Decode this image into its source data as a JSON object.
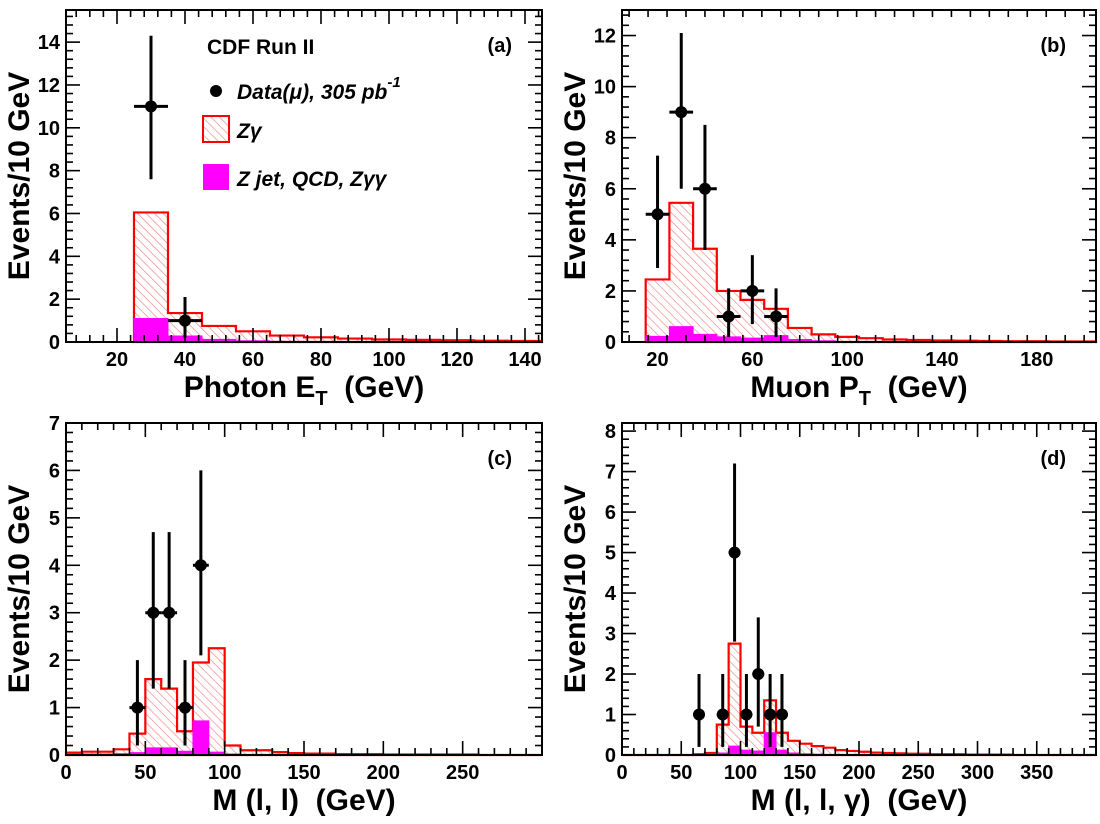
{
  "figure": {
    "experiment": "CDF Run II",
    "legend": {
      "data_label": "Data(μ), 305 pb",
      "data_superscript": "-1",
      "zgamma_label": "Zγ",
      "background_label": "Z jet, QCD, Zγγ"
    }
  },
  "colors": {
    "zgamma_line": "#ff0000",
    "zgamma_hatch": "#f5a0a0",
    "background_fill": "#ff00ff",
    "data": "#000000"
  },
  "chart_data": [
    {
      "id": "a",
      "type": "bar",
      "panel_label": "(a)",
      "xlabel": "Photon E",
      "xlabel_sub": "T",
      "xlabel_tail": "(GeV)",
      "ylabel": "Events/10 GeV",
      "xlim": [
        5,
        145
      ],
      "ylim": [
        0,
        15.5
      ],
      "xticks": [
        20,
        40,
        60,
        80,
        100,
        120,
        140
      ],
      "yticks": [
        0,
        2,
        4,
        6,
        8,
        10,
        12,
        14
      ],
      "bin_edges": [
        25,
        35,
        45,
        55,
        65,
        75,
        85,
        95,
        105,
        115,
        125,
        135,
        145
      ],
      "series": [
        {
          "name": "Zγ",
          "values": [
            6.05,
            1.35,
            0.75,
            0.5,
            0.3,
            0.22,
            0.16,
            0.12,
            0.1,
            0.08,
            0.06,
            0.05
          ]
        },
        {
          "name": "Z jet, QCD, Zγγ",
          "values": [
            1.1,
            0.28,
            0.12,
            0.06,
            0.03,
            0.02,
            0.01,
            0.01,
            0.01,
            0.01,
            0.0,
            0.0
          ]
        }
      ],
      "data_points": [
        {
          "x": 30,
          "y": 11,
          "xerr": 5,
          "yerr_low": 3.4,
          "yerr_high": 3.3
        },
        {
          "x": 40,
          "y": 1,
          "xerr": 5,
          "yerr_low": 0.8,
          "yerr_high": 1.1
        }
      ]
    },
    {
      "id": "b",
      "type": "bar",
      "panel_label": "(b)",
      "xlabel": "Muon P",
      "xlabel_sub": "T",
      "xlabel_tail": "(GeV)",
      "ylabel": "Events/10 GeV",
      "xlim": [
        5,
        205
      ],
      "ylim": [
        0,
        13
      ],
      "xticks": [
        20,
        60,
        100,
        140,
        180
      ],
      "yticks": [
        0,
        2,
        4,
        6,
        8,
        10,
        12
      ],
      "bin_edges": [
        15,
        25,
        35,
        45,
        55,
        65,
        75,
        85,
        95,
        105,
        115,
        125,
        135,
        145,
        155,
        165,
        175,
        185,
        195,
        205
      ],
      "series": [
        {
          "name": "Zγ",
          "values": [
            2.45,
            5.45,
            3.65,
            2.0,
            1.65,
            1.3,
            0.55,
            0.3,
            0.2,
            0.15,
            0.1,
            0.08,
            0.06,
            0.05,
            0.04,
            0.03,
            0.03,
            0.02,
            0.02
          ]
        },
        {
          "name": "Z jet, QCD, Zγγ",
          "values": [
            0.22,
            0.6,
            0.3,
            0.2,
            0.15,
            0.25,
            0.1,
            0.05,
            0.02,
            0.02,
            0.01,
            0.01,
            0.0,
            0.0,
            0.0,
            0.0,
            0.0,
            0.0,
            0.0
          ]
        }
      ],
      "data_points": [
        {
          "x": 20,
          "y": 5,
          "xerr": 5,
          "yerr_low": 2.1,
          "yerr_high": 2.3
        },
        {
          "x": 30,
          "y": 9,
          "xerr": 5,
          "yerr_low": 3.0,
          "yerr_high": 3.1
        },
        {
          "x": 40,
          "y": 6,
          "xerr": 5,
          "yerr_low": 2.4,
          "yerr_high": 2.5
        },
        {
          "x": 50,
          "y": 1,
          "xerr": 5,
          "yerr_low": 0.8,
          "yerr_high": 1.1
        },
        {
          "x": 60,
          "y": 2,
          "xerr": 5,
          "yerr_low": 1.3,
          "yerr_high": 1.4
        },
        {
          "x": 70,
          "y": 1,
          "xerr": 5,
          "yerr_low": 0.8,
          "yerr_high": 1.1
        }
      ]
    },
    {
      "id": "c",
      "type": "bar",
      "panel_label": "(c)",
      "xlabel": "M (l, l)",
      "xlabel_sub": "",
      "xlabel_tail": "(GeV)",
      "ylabel": "Events/10 GeV",
      "xlim": [
        0,
        300
      ],
      "ylim": [
        0,
        7
      ],
      "xticks": [
        0,
        50,
        100,
        150,
        200,
        250
      ],
      "yticks": [
        0,
        1,
        2,
        3,
        4,
        5,
        6,
        7
      ],
      "bin_edges": [
        0,
        10,
        20,
        30,
        40,
        50,
        60,
        70,
        80,
        90,
        100,
        110,
        120,
        130,
        140,
        150,
        160,
        170,
        180,
        190,
        200,
        210,
        220,
        230,
        240,
        250,
        260,
        270,
        280,
        290,
        300
      ],
      "series": [
        {
          "name": "Zγ",
          "values": [
            0.05,
            0.07,
            0.07,
            0.12,
            0.45,
            1.6,
            1.4,
            0.5,
            1.95,
            2.25,
            0.2,
            0.1,
            0.1,
            0.06,
            0.04,
            0.03,
            0.03,
            0.02,
            0.02,
            0.02,
            0.01,
            0.01,
            0.01,
            0.01,
            0.01,
            0.01,
            0.0,
            0.0,
            0.0,
            0.0
          ]
        },
        {
          "name": "Z jet, QCD, Zγγ",
          "values": [
            0.02,
            0.02,
            0.02,
            0.03,
            0.05,
            0.15,
            0.15,
            0.08,
            0.72,
            0.06,
            0.02,
            0.01,
            0.01,
            0.0,
            0.0,
            0.0,
            0.0,
            0.0,
            0.0,
            0.0,
            0.0,
            0.0,
            0.0,
            0.0,
            0.0,
            0.0,
            0.0,
            0.0,
            0.0,
            0.0
          ]
        }
      ],
      "data_points": [
        {
          "x": 45,
          "y": 1,
          "xerr": 5,
          "yerr_low": 0.8,
          "yerr_high": 1.0
        },
        {
          "x": 55,
          "y": 3,
          "xerr": 5,
          "yerr_low": 1.6,
          "yerr_high": 1.7
        },
        {
          "x": 65,
          "y": 3,
          "xerr": 5,
          "yerr_low": 1.6,
          "yerr_high": 1.7
        },
        {
          "x": 75,
          "y": 1,
          "xerr": 5,
          "yerr_low": 0.8,
          "yerr_high": 1.0
        },
        {
          "x": 85,
          "y": 4,
          "xerr": 5,
          "yerr_low": 1.9,
          "yerr_high": 2.0
        }
      ]
    },
    {
      "id": "d",
      "type": "bar",
      "panel_label": "(d)",
      "xlabel": "M (l, l, γ)",
      "xlabel_sub": "",
      "xlabel_tail": "(GeV)",
      "ylabel": "Events/10 GeV",
      "xlim": [
        0,
        400
      ],
      "ylim": [
        0,
        8.2
      ],
      "xticks": [
        0,
        50,
        100,
        150,
        200,
        250,
        300,
        350
      ],
      "yticks": [
        0,
        1,
        2,
        3,
        4,
        5,
        6,
        7,
        8
      ],
      "bin_edges": [
        0,
        10,
        20,
        30,
        40,
        50,
        60,
        70,
        80,
        90,
        100,
        110,
        120,
        130,
        140,
        150,
        160,
        170,
        180,
        190,
        200,
        210,
        220,
        230,
        240,
        250,
        260,
        270,
        280,
        290,
        300,
        310,
        320,
        330,
        340,
        350,
        360,
        370,
        380,
        390,
        400
      ],
      "series": [
        {
          "name": "Zγ",
          "values": [
            0,
            0,
            0,
            0,
            0,
            0,
            0.02,
            0.05,
            0.75,
            2.75,
            0.7,
            0.55,
            1.35,
            0.55,
            0.35,
            0.28,
            0.22,
            0.18,
            0.12,
            0.1,
            0.08,
            0.06,
            0.05,
            0.04,
            0.03,
            0.03,
            0.02,
            0.02,
            0.02,
            0.01,
            0.01,
            0.01,
            0.01,
            0.0,
            0.0,
            0.0,
            0.0,
            0.0,
            0.0,
            0.0
          ]
        },
        {
          "name": "Z jet, QCD, Zγγ",
          "values": [
            0,
            0,
            0,
            0,
            0,
            0,
            0.01,
            0.02,
            0.05,
            0.22,
            0.12,
            0.1,
            0.55,
            0.12,
            0.05,
            0.03,
            0.02,
            0.01,
            0.01,
            0.0,
            0.0,
            0.0,
            0.0,
            0.0,
            0.0,
            0.0,
            0.0,
            0.0,
            0.0,
            0.0,
            0.0,
            0.0,
            0.0,
            0.0,
            0.0,
            0.0,
            0.0,
            0.0,
            0.0,
            0.0
          ]
        }
      ],
      "data_points": [
        {
          "x": 65,
          "y": 1,
          "xerr": 5,
          "yerr_low": 0.8,
          "yerr_high": 1.0
        },
        {
          "x": 85,
          "y": 1,
          "xerr": 5,
          "yerr_low": 0.8,
          "yerr_high": 1.0
        },
        {
          "x": 95,
          "y": 5,
          "xerr": 5,
          "yerr_low": 2.2,
          "yerr_high": 2.2
        },
        {
          "x": 105,
          "y": 1,
          "xerr": 5,
          "yerr_low": 0.8,
          "yerr_high": 1.0
        },
        {
          "x": 115,
          "y": 2,
          "xerr": 5,
          "yerr_low": 1.3,
          "yerr_high": 1.4
        },
        {
          "x": 125,
          "y": 1,
          "xerr": 5,
          "yerr_low": 0.8,
          "yerr_high": 1.0
        },
        {
          "x": 135,
          "y": 1,
          "xerr": 5,
          "yerr_low": 0.8,
          "yerr_high": 1.0
        }
      ]
    }
  ]
}
